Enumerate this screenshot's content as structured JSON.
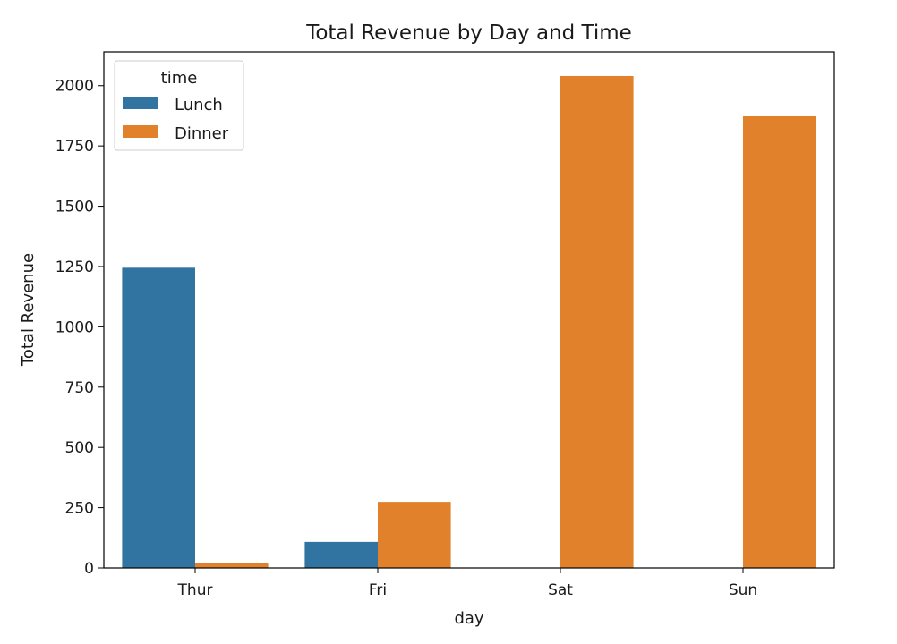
{
  "chart_data": {
    "type": "bar",
    "title": "Total Revenue by Day and Time",
    "xlabel": "day",
    "ylabel": "Total Revenue",
    "categories": [
      "Thur",
      "Fri",
      "Sat",
      "Sun"
    ],
    "series": [
      {
        "name": "Lunch",
        "color": "#3274a1",
        "values": [
          1245,
          108,
          0,
          0
        ]
      },
      {
        "name": "Dinner",
        "color": "#e1812c",
        "values": [
          22,
          274,
          2040,
          1873
        ]
      }
    ],
    "ylim": [
      0,
      2140
    ],
    "yticks": [
      0,
      250,
      500,
      750,
      1000,
      1250,
      1500,
      1750,
      2000
    ],
    "grid": false,
    "legend": {
      "title": "time",
      "position": "upper-left"
    }
  }
}
